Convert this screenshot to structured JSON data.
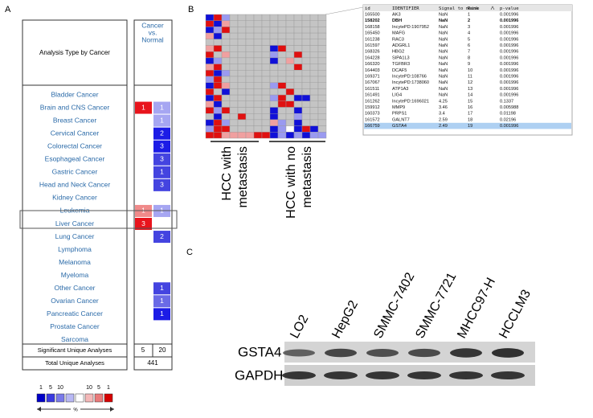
{
  "panel_a": {
    "label": "A",
    "header_left": "Analysis Type by Cancer",
    "header_right": [
      "Cancer",
      "vs.",
      "Normal"
    ],
    "rows": [
      {
        "name": "Bladder Cancer",
        "cells": [
          null,
          null
        ]
      },
      {
        "name": "Brain and CNS Cancer",
        "cells": [
          {
            "value": 1,
            "color": "#e8141c"
          },
          {
            "value": 1,
            "color": "#a6a6f2"
          }
        ]
      },
      {
        "name": "Breast Cancer",
        "cells": [
          null,
          {
            "value": 1,
            "color": "#a6a6f2"
          }
        ]
      },
      {
        "name": "Cervical Cancer",
        "cells": [
          null,
          {
            "value": 2,
            "color": "#1c1ce6"
          }
        ]
      },
      {
        "name": "Colorectal Cancer",
        "cells": [
          null,
          {
            "value": 3,
            "color": "#1c1ce6"
          }
        ]
      },
      {
        "name": "Esophageal Cancer",
        "cells": [
          null,
          {
            "value": 3,
            "color": "#4444e0"
          }
        ]
      },
      {
        "name": "Gastric Cancer",
        "cells": [
          null,
          {
            "value": 1,
            "color": "#4444e0"
          }
        ]
      },
      {
        "name": "Head and Neck Cancer",
        "cells": [
          null,
          {
            "value": 3,
            "color": "#4444e0"
          }
        ]
      },
      {
        "name": "Kidney Cancer",
        "cells": [
          null,
          null
        ]
      },
      {
        "name": "Leukemia",
        "cells": [
          {
            "value": 1,
            "color": "#f08a8a"
          },
          {
            "value": 1,
            "color": "#a6a6f2"
          }
        ]
      },
      {
        "name": "Liver Cancer",
        "cells": [
          {
            "value": 3,
            "color": "#e8141c"
          },
          null
        ]
      },
      {
        "name": "Lung Cancer",
        "cells": [
          null,
          {
            "value": 2,
            "color": "#4444e0"
          }
        ]
      },
      {
        "name": "Lymphoma",
        "cells": [
          null,
          null
        ]
      },
      {
        "name": "Melanoma",
        "cells": [
          null,
          null
        ]
      },
      {
        "name": "Myeloma",
        "cells": [
          null,
          null
        ]
      },
      {
        "name": "Other Cancer",
        "cells": [
          null,
          {
            "value": 1,
            "color": "#4444e0"
          }
        ]
      },
      {
        "name": "Ovarian Cancer",
        "cells": [
          null,
          {
            "value": 1,
            "color": "#6a6ae6"
          }
        ]
      },
      {
        "name": "Pancreatic Cancer",
        "cells": [
          null,
          {
            "value": 1,
            "color": "#1c1ce6"
          }
        ]
      },
      {
        "name": "Prostate Cancer",
        "cells": [
          null,
          null
        ]
      },
      {
        "name": "Sarcoma",
        "cells": [
          null,
          null
        ]
      }
    ],
    "summary": [
      {
        "name": "Significant Unique Analyses",
        "values": [
          5,
          20
        ]
      },
      {
        "name": "Total Unique Analyses",
        "values": [
          441
        ]
      }
    ],
    "legend": {
      "labels_left": [
        1,
        5,
        10
      ],
      "labels_right": [
        10,
        5,
        1
      ],
      "unit": "%",
      "colors": [
        "#0000c8",
        "#3a3ae0",
        "#7a7aea",
        "#b8b8f4",
        "#ffffff",
        "#f4b8b8",
        "#ea7a7a",
        "#d60000"
      ]
    }
  },
  "panel_b": {
    "label": "B",
    "groups": [
      [
        "HCC with",
        "metastasis"
      ],
      [
        "HCC with no",
        "metastasis"
      ]
    ],
    "table": {
      "columns": [
        "id",
        "IDENTIFIER",
        "Signal to noise",
        "Rank",
        "p-value"
      ],
      "rows": [
        [
          165500,
          "AK3",
          "NaN",
          1,
          0.001996
        ],
        [
          158202,
          "DBH",
          "NaN",
          2,
          0.001996
        ],
        [
          168158,
          "IncytePD:1907952",
          "NaN",
          3,
          0.001996
        ],
        [
          165450,
          "MAFG",
          "NaN",
          4,
          0.001996
        ],
        [
          161238,
          "RAC3",
          "NaN",
          5,
          0.001996
        ],
        [
          161597,
          "ADGRL1",
          "NaN",
          6,
          0.001996
        ],
        [
          168326,
          "HBG2",
          "NaN",
          7,
          0.001996
        ],
        [
          164228,
          "SIPA1L3",
          "NaN",
          8,
          0.001996
        ],
        [
          166320,
          "TGFBR3",
          "NaN",
          9,
          0.001996
        ],
        [
          164403,
          "DCAF5",
          "NaN",
          10,
          0.001996
        ],
        [
          169371,
          "IncytePD:108766",
          "NaN",
          11,
          0.001996
        ],
        [
          167067,
          "IncytePD:1738060",
          "NaN",
          12,
          0.001996
        ],
        [
          161511,
          "ATP1A3",
          "NaN",
          13,
          0.001996
        ],
        [
          161491,
          "LIG4",
          "NaN",
          14,
          0.001996
        ],
        [
          161262,
          "IncytePD:1696021",
          4.25,
          15,
          0.1337
        ],
        [
          159912,
          "MMP9",
          3.46,
          16,
          0.005988
        ],
        [
          160373,
          "PRPS1",
          3.4,
          17,
          0.01198
        ],
        [
          161572,
          "GALNT7",
          2.59,
          18,
          0.02196
        ],
        [
          166759,
          "GSTA4",
          2.49,
          19,
          0.001996
        ]
      ]
    }
  },
  "panel_c": {
    "label": "C",
    "lanes": [
      "LO2",
      "HepG2",
      "SMMC-7402",
      "SMMC-7721",
      "MHCC97-H",
      "HCCLM3"
    ],
    "blots": [
      "GSTA4",
      "GAPDH"
    ]
  }
}
